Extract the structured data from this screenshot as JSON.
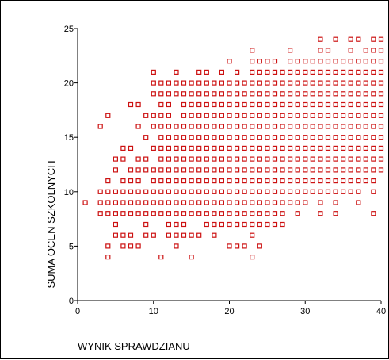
{
  "chart_data": {
    "type": "scatter",
    "xlabel": "WYNIK SPRAWDZIANU",
    "ylabel": "SUMA OCEN SZKOLNYCH",
    "xlim": [
      0,
      40
    ],
    "ylim": [
      0,
      25
    ],
    "x_ticks": [
      0,
      10,
      20,
      30,
      40
    ],
    "y_ticks": [
      0,
      5,
      10,
      15,
      20,
      25
    ],
    "grid": false,
    "marker": "hollow-square",
    "color": "#cc1111",
    "rows": [
      {
        "y": 4,
        "x": [
          4,
          11,
          15,
          23
        ]
      },
      {
        "y": 5,
        "x": [
          4,
          6,
          7,
          8,
          13,
          20,
          21,
          22,
          24
        ]
      },
      {
        "y": 6,
        "x": [
          5,
          6,
          7,
          9,
          10,
          12,
          13,
          14,
          15,
          16,
          18,
          23
        ]
      },
      {
        "y": 7,
        "x": [
          5,
          9,
          12,
          13,
          14,
          17,
          18,
          19,
          20,
          21,
          22,
          23,
          24,
          25,
          26,
          27
        ]
      },
      {
        "y": 8,
        "x": [
          3,
          4,
          5,
          6,
          7,
          8,
          9,
          10,
          11,
          12,
          13,
          14,
          15,
          16,
          17,
          18,
          19,
          20,
          21,
          22,
          23,
          24,
          25,
          26,
          27,
          29,
          32,
          34,
          39
        ]
      },
      {
        "y": 9,
        "x": [
          1,
          3,
          4,
          5,
          6,
          7,
          8,
          9,
          10,
          11,
          12,
          13,
          14,
          15,
          16,
          17,
          18,
          19,
          20,
          21,
          22,
          23,
          24,
          25,
          26,
          27,
          28,
          29,
          30,
          32,
          34,
          37
        ]
      },
      {
        "y": 10,
        "x": [
          3,
          4,
          5,
          6,
          7,
          8,
          9,
          10,
          11,
          12,
          13,
          14,
          15,
          16,
          17,
          18,
          19,
          20,
          21,
          22,
          23,
          24,
          25,
          26,
          27,
          28,
          29,
          30,
          31,
          32,
          33,
          34,
          35,
          36,
          37,
          39
        ]
      },
      {
        "y": 11,
        "x": [
          4,
          6,
          7,
          8,
          10,
          11,
          12,
          13,
          14,
          15,
          16,
          17,
          18,
          19,
          20,
          21,
          22,
          23,
          24,
          25,
          26,
          27,
          28,
          29,
          30,
          31,
          32,
          33,
          34,
          35,
          36,
          37,
          38,
          39
        ]
      },
      {
        "y": 12,
        "x": [
          5,
          7,
          8,
          9,
          10,
          11,
          12,
          13,
          14,
          15,
          16,
          17,
          18,
          19,
          20,
          21,
          22,
          23,
          24,
          25,
          26,
          27,
          28,
          29,
          30,
          31,
          32,
          33,
          34,
          35,
          36,
          37,
          38,
          39,
          40
        ]
      },
      {
        "y": 13,
        "x": [
          5,
          6,
          8,
          9,
          11,
          12,
          13,
          14,
          15,
          16,
          17,
          18,
          19,
          20,
          21,
          22,
          23,
          24,
          25,
          26,
          27,
          28,
          29,
          30,
          31,
          32,
          33,
          34,
          35,
          36,
          37,
          38,
          39,
          40
        ]
      },
      {
        "y": 14,
        "x": [
          6,
          7,
          10,
          11,
          12,
          13,
          14,
          15,
          16,
          17,
          18,
          19,
          20,
          21,
          22,
          23,
          24,
          25,
          26,
          27,
          28,
          29,
          30,
          31,
          32,
          33,
          34,
          35,
          36,
          37,
          38,
          39,
          40
        ]
      },
      {
        "y": 15,
        "x": [
          9,
          11,
          12,
          13,
          14,
          15,
          16,
          17,
          18,
          19,
          20,
          21,
          22,
          23,
          24,
          25,
          26,
          27,
          28,
          29,
          30,
          31,
          32,
          33,
          34,
          35,
          36,
          37,
          38,
          39,
          40
        ]
      },
      {
        "y": 16,
        "x": [
          3,
          8,
          10,
          11,
          12,
          13,
          14,
          15,
          16,
          17,
          18,
          19,
          20,
          21,
          22,
          23,
          24,
          25,
          26,
          27,
          28,
          29,
          30,
          31,
          32,
          33,
          34,
          35,
          36,
          37,
          38,
          39,
          40
        ]
      },
      {
        "y": 17,
        "x": [
          4,
          9,
          10,
          11,
          12,
          14,
          15,
          16,
          17,
          18,
          19,
          20,
          21,
          22,
          23,
          24,
          25,
          26,
          27,
          28,
          29,
          30,
          31,
          32,
          33,
          34,
          35,
          36,
          37,
          38,
          39,
          40
        ]
      },
      {
        "y": 18,
        "x": [
          7,
          8,
          11,
          12,
          14,
          15,
          16,
          17,
          18,
          19,
          20,
          21,
          22,
          23,
          24,
          25,
          26,
          27,
          28,
          29,
          30,
          31,
          32,
          33,
          34,
          35,
          36,
          37,
          38,
          39,
          40
        ]
      },
      {
        "y": 19,
        "x": [
          10,
          11,
          12,
          13,
          14,
          15,
          16,
          17,
          18,
          19,
          20,
          21,
          22,
          23,
          24,
          25,
          26,
          27,
          28,
          29,
          30,
          31,
          32,
          33,
          34,
          35,
          36,
          37,
          38,
          39,
          40
        ]
      },
      {
        "y": 20,
        "x": [
          10,
          11,
          12,
          13,
          14,
          15,
          16,
          17,
          18,
          19,
          20,
          21,
          22,
          23,
          24,
          25,
          26,
          27,
          28,
          29,
          30,
          31,
          32,
          33,
          34,
          35,
          36,
          37,
          38,
          39,
          40
        ]
      },
      {
        "y": 21,
        "x": [
          10,
          13,
          16,
          17,
          19,
          21,
          23,
          24,
          25,
          26,
          27,
          28,
          29,
          30,
          31,
          32,
          33,
          34,
          35,
          36,
          37,
          38,
          39,
          40
        ]
      },
      {
        "y": 22,
        "x": [
          20,
          23,
          24,
          25,
          26,
          28,
          29,
          30,
          31,
          32,
          33,
          34,
          35,
          36,
          37,
          38,
          39,
          40
        ]
      },
      {
        "y": 23,
        "x": [
          23,
          28,
          32,
          33,
          36,
          38,
          39,
          40
        ]
      },
      {
        "y": 24,
        "x": [
          32,
          34,
          36,
          37,
          39,
          40
        ]
      }
    ]
  }
}
